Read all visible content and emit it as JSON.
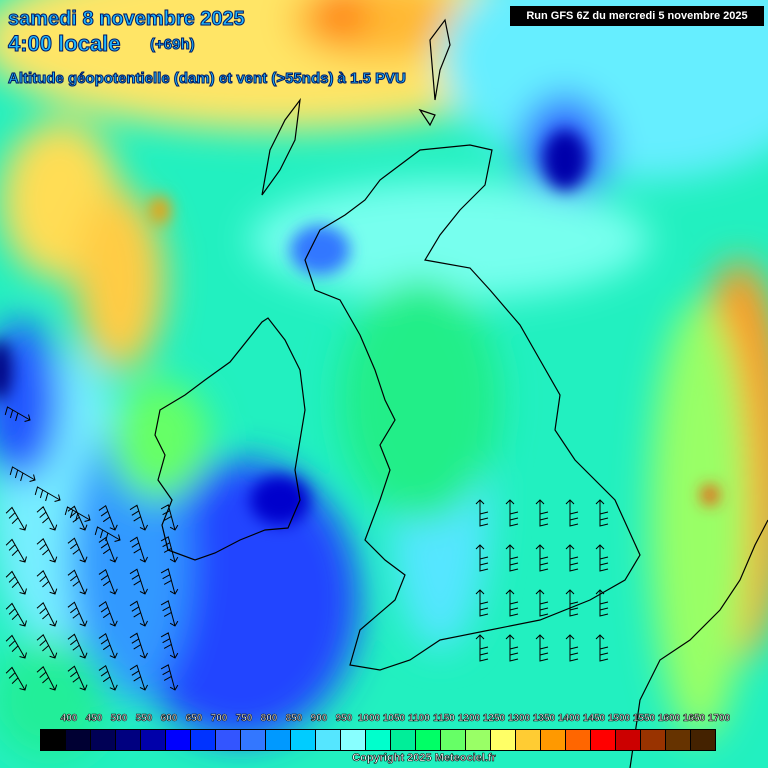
{
  "header": {
    "date": "samedi 8 novembre 2025",
    "time": "4:00 locale",
    "lead": "(+69h)",
    "parameter": "Altitude géopotentielle (dam) et vent (>55nds) à 1.5 PVU",
    "run": "Run GFS 6Z du mercredi 5 novembre 2025"
  },
  "legend": {
    "labels": [
      "400",
      "450",
      "500",
      "550",
      "600",
      "650",
      "700",
      "750",
      "800",
      "850",
      "900",
      "950",
      "1000",
      "1050",
      "1100",
      "1150",
      "1200",
      "1250",
      "1300",
      "1350",
      "1400",
      "1450",
      "1500",
      "1550",
      "1600",
      "1650",
      "1700"
    ],
    "colors": [
      "#000000",
      "#000033",
      "#000055",
      "#000080",
      "#0000aa",
      "#0000ff",
      "#0033ff",
      "#3355ff",
      "#3377ff",
      "#0099ff",
      "#00ccff",
      "#55e6ff",
      "#88ffff",
      "#00ffcc",
      "#00ee99",
      "#00ff66",
      "#66ff66",
      "#99ff66",
      "#ffff66",
      "#ffcc33",
      "#ff9900",
      "#ff6600",
      "#ff0000",
      "#cc0000",
      "#993300",
      "#663300",
      "#442200"
    ]
  },
  "footer": {
    "copyright": "Copyright 2025 Meteociel.fr"
  },
  "map": {
    "region": "British Isles / NE Atlantic",
    "wind_barb_color": "#000000",
    "coastline_color": "#000000"
  }
}
